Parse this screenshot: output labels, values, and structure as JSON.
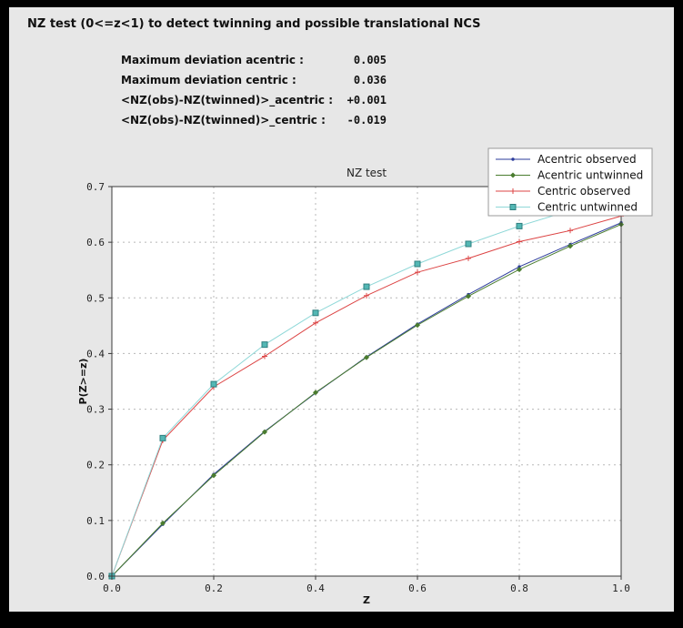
{
  "window": {
    "title": "NZ test (0<=z<1) to detect twinning and possible translational NCS"
  },
  "stats": {
    "rows": [
      {
        "label": "Maximum deviation acentric :",
        "value": "0.005"
      },
      {
        "label": "Maximum deviation centric :",
        "value": "0.036"
      },
      {
        "label": "<NZ(obs)-NZ(twinned)>_acentric :",
        "value": "+0.001"
      },
      {
        "label": "<NZ(obs)-NZ(twinned)>_centric :",
        "value": "-0.019"
      }
    ]
  },
  "chart_data": {
    "type": "line",
    "title": "NZ test",
    "xlabel": "Z",
    "ylabel": "P(Z>=z)",
    "xlim": [
      0.0,
      1.0
    ],
    "ylim": [
      0.0,
      0.7
    ],
    "xticks": [
      "0.0",
      "0.2",
      "0.4",
      "0.6",
      "0.8",
      "1.0"
    ],
    "yticks": [
      "0.0",
      "0.1",
      "0.2",
      "0.3",
      "0.4",
      "0.5",
      "0.6",
      "0.7"
    ],
    "grid": true,
    "legend_position": "top-right",
    "background_color": "#e7e7e7",
    "plot_background_color": "#ffffff",
    "x": [
      0.0,
      0.1,
      0.2,
      0.3,
      0.4,
      0.5,
      0.6,
      0.7,
      0.8,
      0.9,
      1.0
    ],
    "series": [
      {
        "name": "Acentric observed",
        "color": "#2b3b9b",
        "marker": "dot",
        "values": [
          0.0,
          0.093,
          0.183,
          0.26,
          0.329,
          0.394,
          0.453,
          0.506,
          0.556,
          0.596,
          0.635
        ]
      },
      {
        "name": "Acentric untwinned",
        "color": "#4a7c2f",
        "marker": "diamond",
        "values": [
          0.0,
          0.095,
          0.181,
          0.259,
          0.33,
          0.393,
          0.451,
          0.503,
          0.551,
          0.593,
          0.632
        ]
      },
      {
        "name": "Centric observed",
        "color": "#dc4444",
        "marker": "plus",
        "values": [
          0.0,
          0.244,
          0.34,
          0.395,
          0.455,
          0.504,
          0.546,
          0.571,
          0.601,
          0.621,
          0.647
        ]
      },
      {
        "name": "Centric untwinned",
        "color": "#8fd8d8",
        "marker": "square",
        "marker_color": "#53b7b4",
        "marker_edge": "#2f7f7f",
        "values": [
          0.0,
          0.248,
          0.345,
          0.416,
          0.473,
          0.52,
          0.561,
          0.597,
          0.629,
          0.657,
          0.683
        ]
      }
    ]
  }
}
